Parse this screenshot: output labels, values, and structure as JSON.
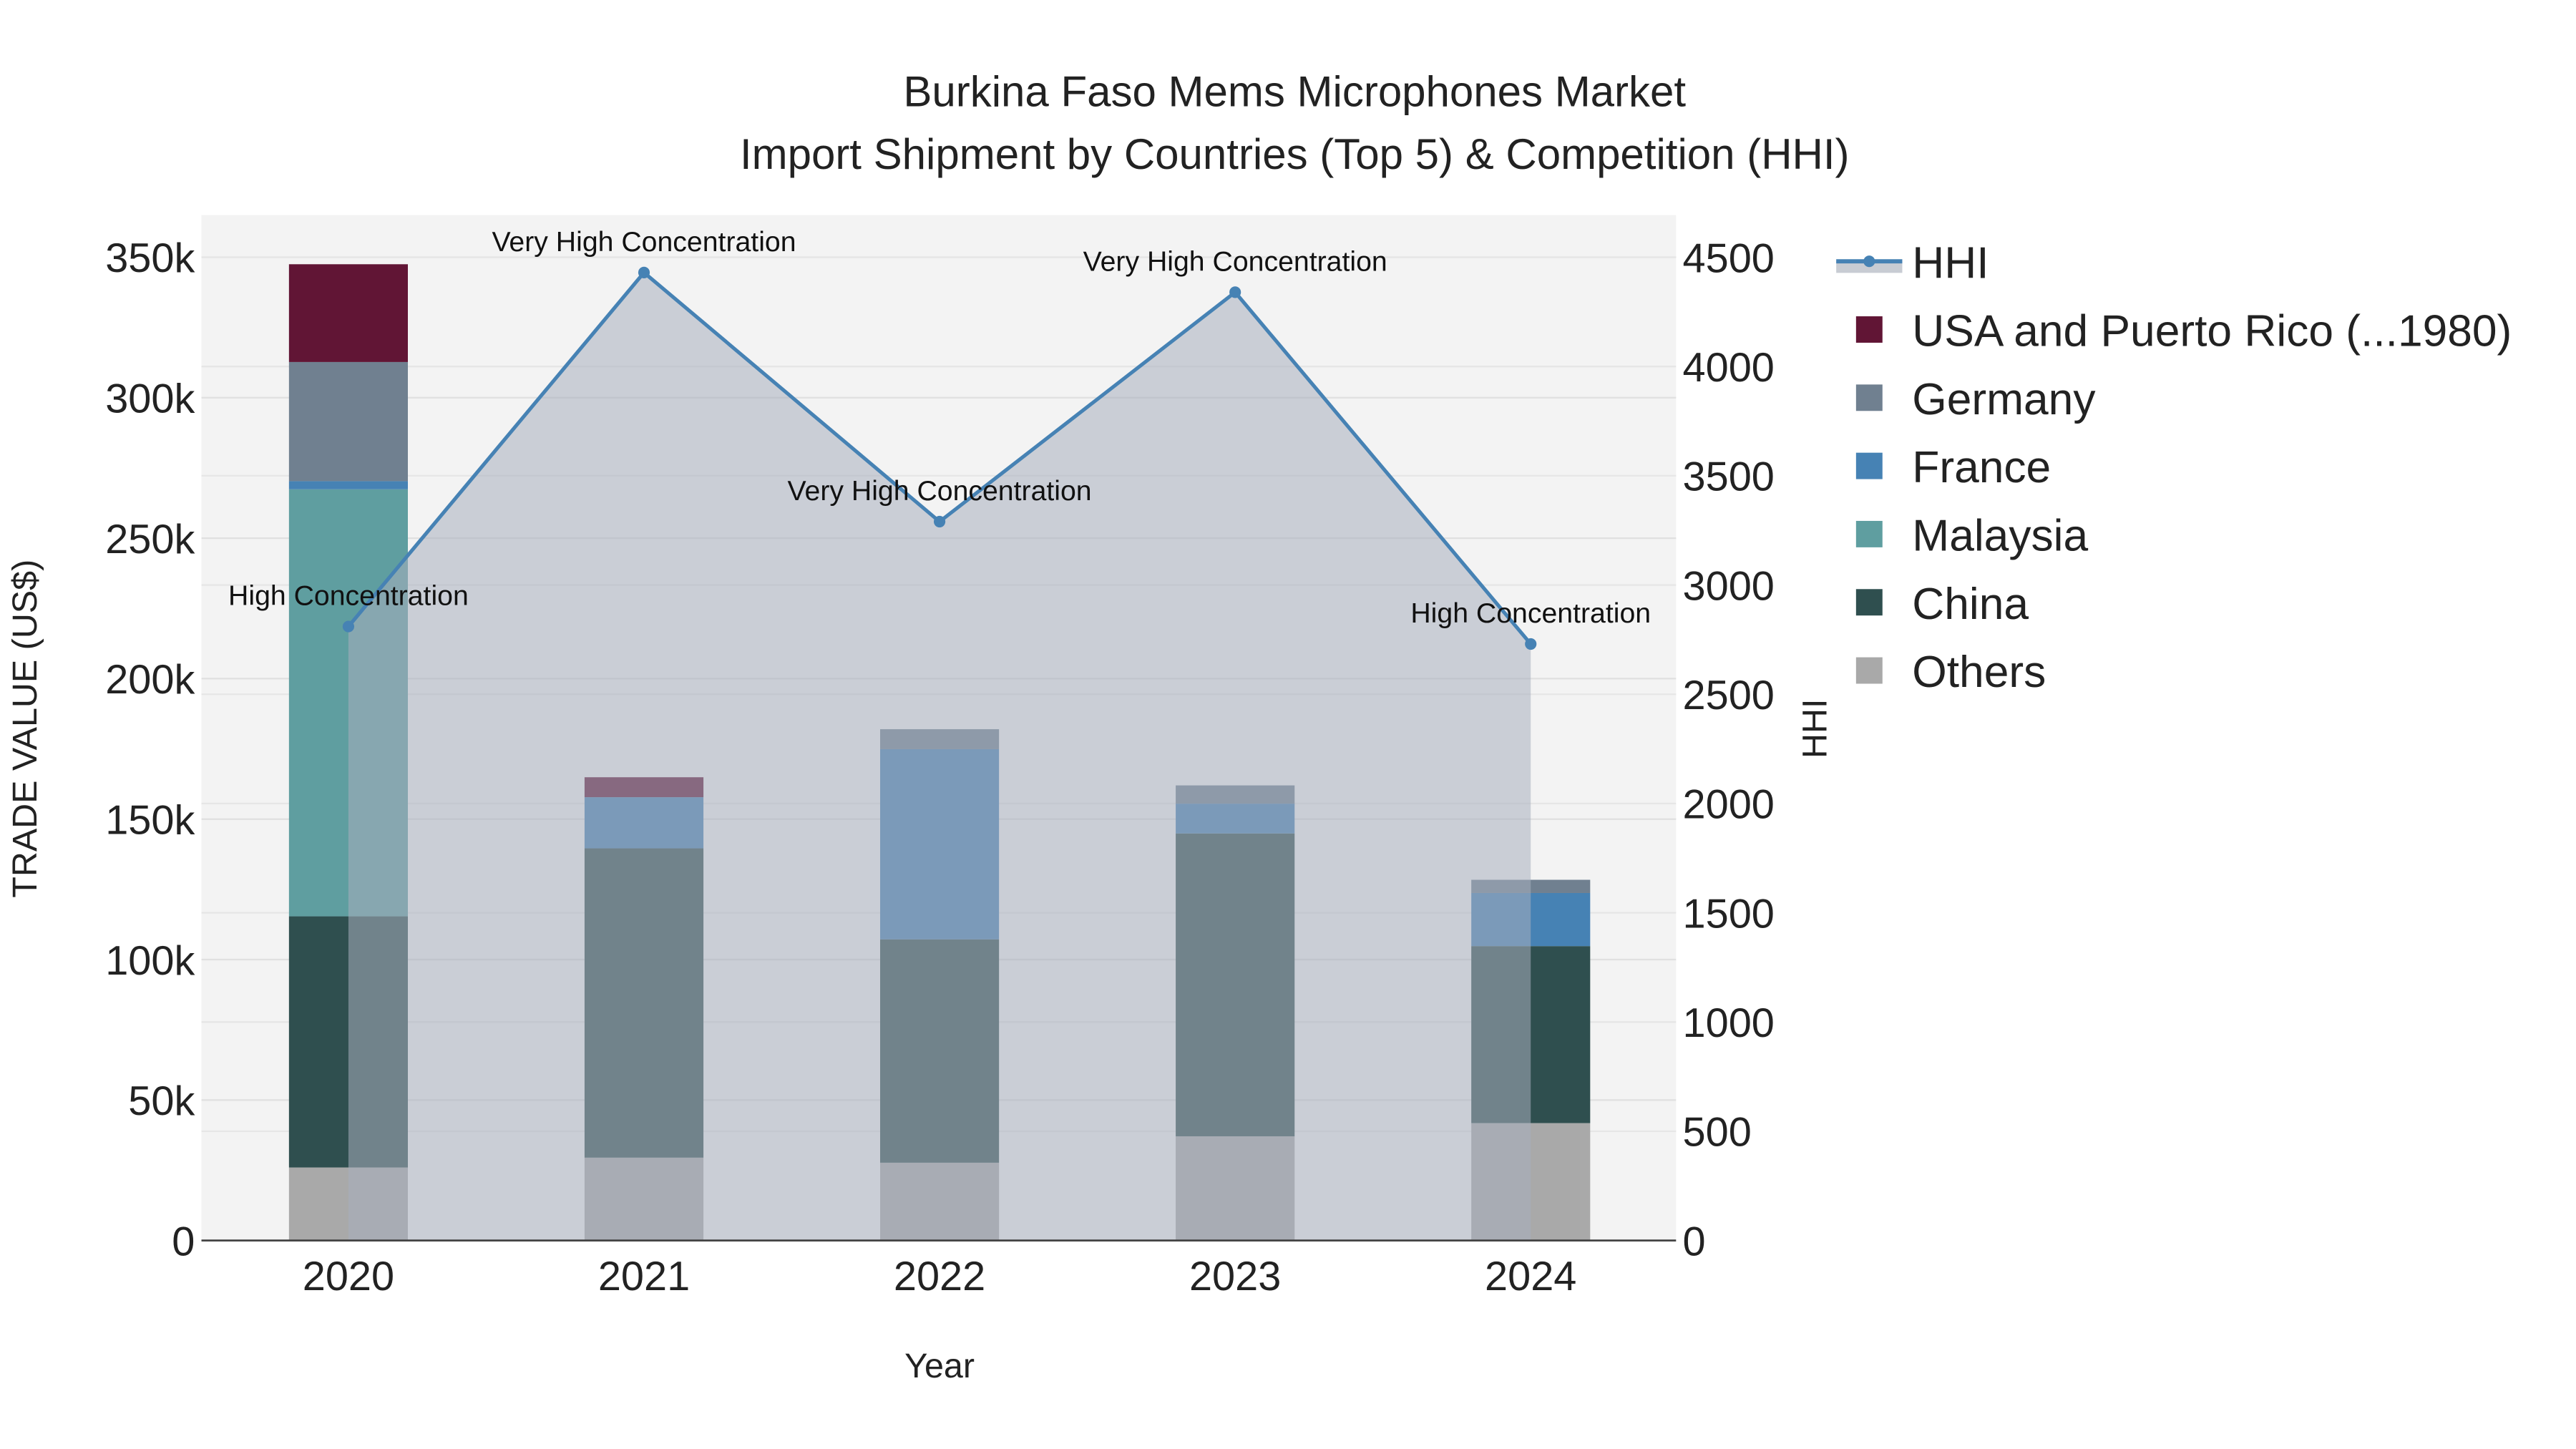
{
  "chart_data": {
    "type": "bar",
    "title_line1": "Burkina Faso Mems Microphones Market",
    "title_line2": "Import Shipment by Countries (Top 5) & Competition (HHI)",
    "xlabel": "Year",
    "ylabel": "TRADE VALUE (US$)",
    "y2label": "HHI",
    "categories": [
      "2020",
      "2021",
      "2022",
      "2023",
      "2024"
    ],
    "ylim": [
      0,
      365000
    ],
    "y2lim": [
      0,
      4693
    ],
    "yticks": [
      {
        "v": 0,
        "label": "0"
      },
      {
        "v": 50000,
        "label": "50k"
      },
      {
        "v": 100000,
        "label": "100k"
      },
      {
        "v": 150000,
        "label": "150k"
      },
      {
        "v": 200000,
        "label": "200k"
      },
      {
        "v": 250000,
        "label": "250k"
      },
      {
        "v": 300000,
        "label": "300k"
      },
      {
        "v": 350000,
        "label": "350k"
      }
    ],
    "y2ticks": [
      {
        "v": 0,
        "label": "0"
      },
      {
        "v": 500,
        "label": "500"
      },
      {
        "v": 1000,
        "label": "1000"
      },
      {
        "v": 1500,
        "label": "1500"
      },
      {
        "v": 2000,
        "label": "2000"
      },
      {
        "v": 2500,
        "label": "2500"
      },
      {
        "v": 3000,
        "label": "3000"
      },
      {
        "v": 3500,
        "label": "3500"
      },
      {
        "v": 4000,
        "label": "4000"
      },
      {
        "v": 4500,
        "label": "4500"
      }
    ],
    "series": [
      {
        "name": "Others",
        "color": "#a9a9a9",
        "values": [
          26000,
          29500,
          27700,
          37100,
          41800
        ]
      },
      {
        "name": "China",
        "color": "#2f4f4f",
        "values": [
          89400,
          110100,
          79500,
          107800,
          63000
        ]
      },
      {
        "name": "Malaysia",
        "color": "#5f9ea0",
        "values": [
          152000,
          0,
          0,
          0,
          0
        ]
      },
      {
        "name": "France",
        "color": "#4682b4",
        "values": [
          2900,
          18200,
          67700,
          10600,
          18900
        ]
      },
      {
        "name": "Germany",
        "color": "#708090",
        "values": [
          42400,
          0,
          7100,
          6500,
          4700
        ]
      },
      {
        "name": "USA and Puerto Rico (...1980)",
        "color": "#611535",
        "values": [
          34800,
          7100,
          0,
          0,
          0
        ]
      }
    ],
    "hhi": {
      "name": "HHI",
      "color": "#4682b4",
      "values": [
        2810,
        4430,
        3290,
        4340,
        2730
      ],
      "annotations": [
        "High Concentration",
        "Very High Concentration",
        "Very High Concentration",
        "Very High Concentration",
        "High Concentration"
      ]
    },
    "legend_order": [
      "HHI",
      "USA and Puerto Rico (...1980)",
      "Germany",
      "France",
      "Malaysia",
      "China",
      "Others"
    ],
    "legend_placement": "right",
    "grid": true
  }
}
